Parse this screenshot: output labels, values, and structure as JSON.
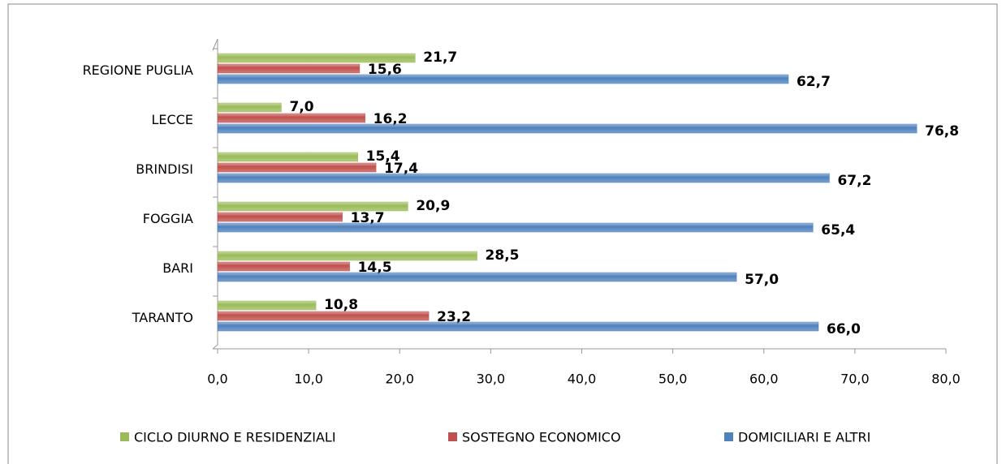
{
  "chart_data": {
    "type": "bar",
    "orientation": "horizontal",
    "categories": [
      "REGIONE PUGLIA",
      "LECCE",
      "BRINDISI",
      "FOGGIA",
      "BARI",
      "TARANTO"
    ],
    "series": [
      {
        "name": "CICLO DIURNO E RESIDENZIALI",
        "color": "#9bbb59",
        "values": [
          21.7,
          7.0,
          15.4,
          20.9,
          28.5,
          10.8
        ],
        "value_labels": [
          "21,7",
          "7,0",
          "15,4",
          "20,9",
          "28,5",
          "10,8"
        ]
      },
      {
        "name": "SOSTEGNO ECONOMICO",
        "color": "#c0504d",
        "values": [
          15.6,
          16.2,
          17.4,
          13.7,
          14.5,
          23.2
        ],
        "value_labels": [
          "15,6",
          "16,2",
          "17,4",
          "13,7",
          "14,5",
          "23,2"
        ]
      },
      {
        "name": "DOMICILIARI E ALTRI",
        "color": "#4f81bd",
        "values": [
          62.7,
          76.8,
          67.2,
          65.4,
          57.0,
          66.0
        ],
        "value_labels": [
          "62,7",
          "76,8",
          "67,2",
          "65,4",
          "57,0",
          "66,0"
        ]
      }
    ],
    "xlim": [
      0,
      80
    ],
    "xticks": [
      {
        "value": 0,
        "label": "0,0"
      },
      {
        "value": 10,
        "label": "10,0"
      },
      {
        "value": 20,
        "label": "20,0"
      },
      {
        "value": 30,
        "label": "30,0"
      },
      {
        "value": 40,
        "label": "40,0"
      },
      {
        "value": 50,
        "label": "50,0"
      },
      {
        "value": 60,
        "label": "60,0"
      },
      {
        "value": 70,
        "label": "70,0"
      },
      {
        "value": 80,
        "label": "80,0"
      }
    ],
    "legend": "bottom"
  }
}
